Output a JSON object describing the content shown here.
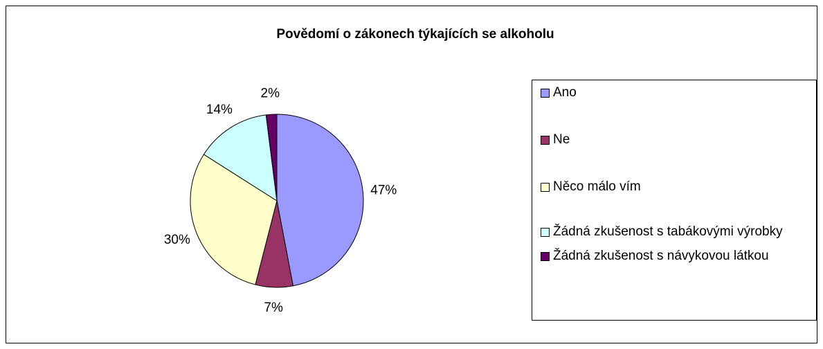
{
  "chart_data": {
    "type": "pie",
    "title": "Povědomí o zákonech týkajících se alkoholu",
    "categories": [
      "Ano",
      "Ne",
      "Něco málo vím",
      "Žádná zkušenost s tabákovými výrobky",
      "Žádná zkušenost s návykovou látkou"
    ],
    "values": [
      47,
      7,
      30,
      14,
      2
    ],
    "value_labels": [
      "47%",
      "7%",
      "30%",
      "14%",
      "2%"
    ],
    "colors": [
      "#9999ff",
      "#993366",
      "#ffffcc",
      "#ccffff",
      "#660066"
    ],
    "legend": "right"
  }
}
